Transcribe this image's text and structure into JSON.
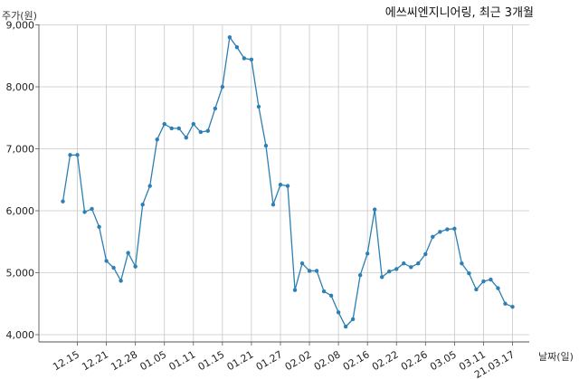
{
  "chart_data": {
    "type": "line",
    "title": "에쓰씨엔지니어링, 최근 3개월",
    "ylabel": "주가(원)",
    "xlabel": "날짜(일)",
    "ylim": [
      4000,
      9000
    ],
    "yticks": [
      "4,000",
      "5,000",
      "6,000",
      "7,000",
      "8,000",
      "9,000"
    ],
    "ytick_values": [
      4000,
      5000,
      6000,
      7000,
      8000,
      9000
    ],
    "grid": true,
    "x_tick_labels": [
      "12.15",
      "12.21",
      "12.28",
      "01.05",
      "01.11",
      "01.15",
      "01.21",
      "01.27",
      "02.02",
      "02.08",
      "02.16",
      "02.22",
      "02.26",
      "03.05",
      "03.11",
      "21.03.17"
    ],
    "x_tick_indices": [
      2,
      6,
      10,
      14,
      18,
      22,
      26,
      30,
      34,
      38,
      42,
      46,
      50,
      54,
      58,
      62
    ],
    "color": "#2e7fb3",
    "series": [
      {
        "values": [
          6150,
          6900,
          6900,
          5980,
          6030,
          5740,
          5190,
          5080,
          4870,
          5320,
          5100,
          6100,
          6400,
          7150,
          7400,
          7330,
          7330,
          7180,
          7400,
          7270,
          7290,
          7650,
          8000,
          8800,
          8640,
          8460,
          8440,
          7680,
          7050,
          6100,
          6420,
          6400,
          4720,
          5150,
          5030,
          5030,
          4700,
          4630,
          4360,
          4130,
          4250,
          4960,
          5310,
          6020,
          4930,
          5020,
          5060,
          5150,
          5090,
          5150,
          5300,
          5580,
          5660,
          5700,
          5710,
          5150,
          4990,
          4730,
          4860,
          4890,
          4750,
          4500,
          4450
        ]
      }
    ]
  }
}
